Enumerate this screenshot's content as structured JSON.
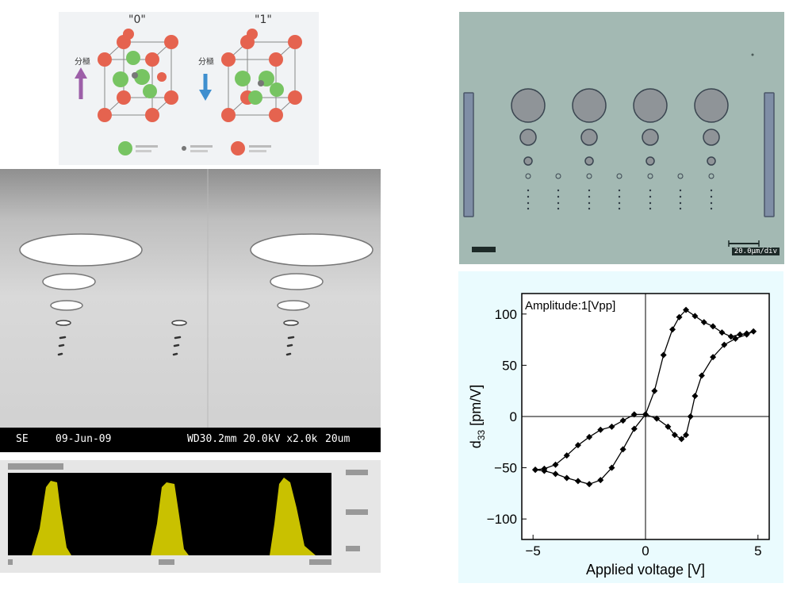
{
  "crystal_panel": {
    "state_labels": [
      "\"0\"",
      "\"1\""
    ],
    "polarization_label_left": "分極",
    "polarization_label_right": "分極"
  },
  "sem_panel": {
    "detector": "SE",
    "date": "09-Jun-09",
    "settings": "WD30.2mm 20.0kV x2.0k",
    "scale": "20um"
  },
  "optical_panel": {
    "scale_label": "20.0μm/div"
  },
  "chart_data": {
    "type": "line",
    "annotation": "Amplitude:1[Vpp]",
    "xlabel": "Applied voltage [V]",
    "ylabel": "d33 [pm/V]",
    "xlim": [
      -5.5,
      5.5
    ],
    "ylim": [
      -120,
      120
    ],
    "x_ticks": [
      -5,
      0,
      5
    ],
    "y_ticks": [
      -100,
      -50,
      0,
      50,
      100
    ],
    "grid": false,
    "series": [
      {
        "points": [
          [
            -4.9,
            -52
          ],
          [
            -4.5,
            -53
          ],
          [
            -4.0,
            -56
          ],
          [
            -3.5,
            -60
          ],
          [
            -3.0,
            -63
          ],
          [
            -2.5,
            -66
          ],
          [
            -2.0,
            -62
          ],
          [
            -1.5,
            -50
          ],
          [
            -1.0,
            -32
          ],
          [
            -0.5,
            -12
          ],
          [
            0.0,
            2
          ],
          [
            0.4,
            25
          ],
          [
            0.8,
            60
          ],
          [
            1.2,
            85
          ],
          [
            1.5,
            97
          ],
          [
            1.8,
            104
          ],
          [
            2.2,
            98
          ],
          [
            2.6,
            92
          ],
          [
            3.0,
            88
          ],
          [
            3.4,
            82
          ],
          [
            3.8,
            78
          ],
          [
            4.2,
            80
          ],
          [
            4.5,
            81
          ],
          [
            4.8,
            83
          ],
          [
            4.5,
            80
          ],
          [
            4.0,
            76
          ],
          [
            3.5,
            70
          ],
          [
            3.0,
            58
          ],
          [
            2.5,
            40
          ],
          [
            2.2,
            20
          ],
          [
            2.0,
            0
          ],
          [
            1.8,
            -18
          ],
          [
            1.6,
            -22
          ],
          [
            1.3,
            -18
          ],
          [
            1.0,
            -10
          ],
          [
            0.5,
            -2
          ],
          [
            0.0,
            2
          ],
          [
            -0.5,
            2
          ],
          [
            -1.0,
            -4
          ],
          [
            -1.5,
            -10
          ],
          [
            -2.0,
            -13
          ],
          [
            -2.5,
            -20
          ],
          [
            -3.0,
            -28
          ],
          [
            -3.5,
            -38
          ],
          [
            -4.0,
            -47
          ],
          [
            -4.5,
            -51
          ],
          [
            -4.9,
            -52
          ]
        ]
      }
    ]
  }
}
